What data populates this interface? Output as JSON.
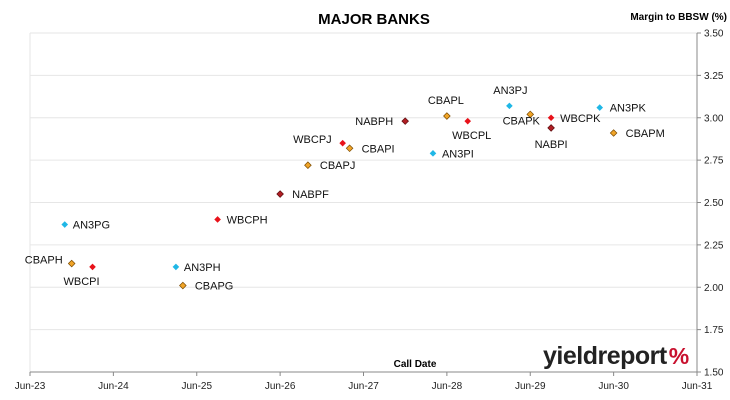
{
  "chart_data": {
    "type": "scatter",
    "title": "MAJOR BANKS",
    "ylabel": "Margin to BBSW (%)",
    "xlabel": "Call Date",
    "x_ticks": [
      "Jun-23",
      "Jun-24",
      "Jun-25",
      "Jun-26",
      "Jun-27",
      "Jun-28",
      "Jun-29",
      "Jun-30",
      "Jun-31"
    ],
    "y_ticks": [
      "1.50",
      "1.75",
      "2.00",
      "2.25",
      "2.50",
      "2.75",
      "3.00",
      "3.25",
      "3.50"
    ],
    "ylim": [
      1.5,
      3.5
    ],
    "y_axis_position": "right",
    "legend": "none",
    "grid": "horizontal",
    "colors": {
      "ANZ": "#1fb7e6",
      "WBC": "#e8121a",
      "CBA": "#f0a428",
      "NAB": "#b01d23"
    },
    "points": [
      {
        "label": "AN3PG",
        "x": "2023-11",
        "y": 2.37,
        "series": "ANZ",
        "marker": "diamond"
      },
      {
        "label": "CBAPH",
        "x": "2023-12",
        "y": 2.14,
        "series": "CBA",
        "marker": "diamond"
      },
      {
        "label": "WBCPI",
        "x": "2024-03",
        "y": 2.12,
        "series": "WBC",
        "marker": "diamond"
      },
      {
        "label": "AN3PH",
        "x": "2025-03",
        "y": 2.12,
        "series": "ANZ",
        "marker": "diamond"
      },
      {
        "label": "CBAPG",
        "x": "2025-04",
        "y": 2.01,
        "series": "CBA",
        "marker": "diamond"
      },
      {
        "label": "WBCPH",
        "x": "2025-09",
        "y": 2.4,
        "series": "WBC",
        "marker": "diamond"
      },
      {
        "label": "NABPF",
        "x": "2026-06",
        "y": 2.55,
        "series": "NAB",
        "marker": "diamond"
      },
      {
        "label": "CBAPJ",
        "x": "2026-10",
        "y": 2.72,
        "series": "CBA",
        "marker": "diamond"
      },
      {
        "label": "WBCPJ",
        "x": "2027-03",
        "y": 2.85,
        "series": "WBC",
        "marker": "diamond"
      },
      {
        "label": "CBAPI",
        "x": "2027-04",
        "y": 2.82,
        "series": "CBA",
        "marker": "diamond"
      },
      {
        "label": "NABPH",
        "x": "2027-12",
        "y": 2.98,
        "series": "NAB",
        "marker": "diamond"
      },
      {
        "label": "AN3PI",
        "x": "2028-04",
        "y": 2.79,
        "series": "ANZ",
        "marker": "diamond"
      },
      {
        "label": "CBAPL",
        "x": "2028-06",
        "y": 3.01,
        "series": "CBA",
        "marker": "diamond"
      },
      {
        "label": "WBCPL",
        "x": "2028-09",
        "y": 2.98,
        "series": "WBC",
        "marker": "diamond"
      },
      {
        "label": "AN3PJ",
        "x": "2029-03",
        "y": 3.07,
        "series": "ANZ",
        "marker": "diamond"
      },
      {
        "label": "CBAPK",
        "x": "2029-06",
        "y": 3.02,
        "series": "CBA",
        "marker": "diamond"
      },
      {
        "label": "WBCPK",
        "x": "2029-09",
        "y": 3.0,
        "series": "WBC",
        "marker": "diamond"
      },
      {
        "label": "NABPI",
        "x": "2029-09",
        "y": 2.94,
        "series": "NAB",
        "marker": "diamond"
      },
      {
        "label": "AN3PK",
        "x": "2030-04",
        "y": 3.06,
        "series": "ANZ",
        "marker": "diamond"
      },
      {
        "label": "CBAPM",
        "x": "2030-06",
        "y": 2.91,
        "series": "CBA",
        "marker": "diamond"
      }
    ]
  },
  "logo": {
    "text": "yieldreport",
    "symbol": "%"
  }
}
